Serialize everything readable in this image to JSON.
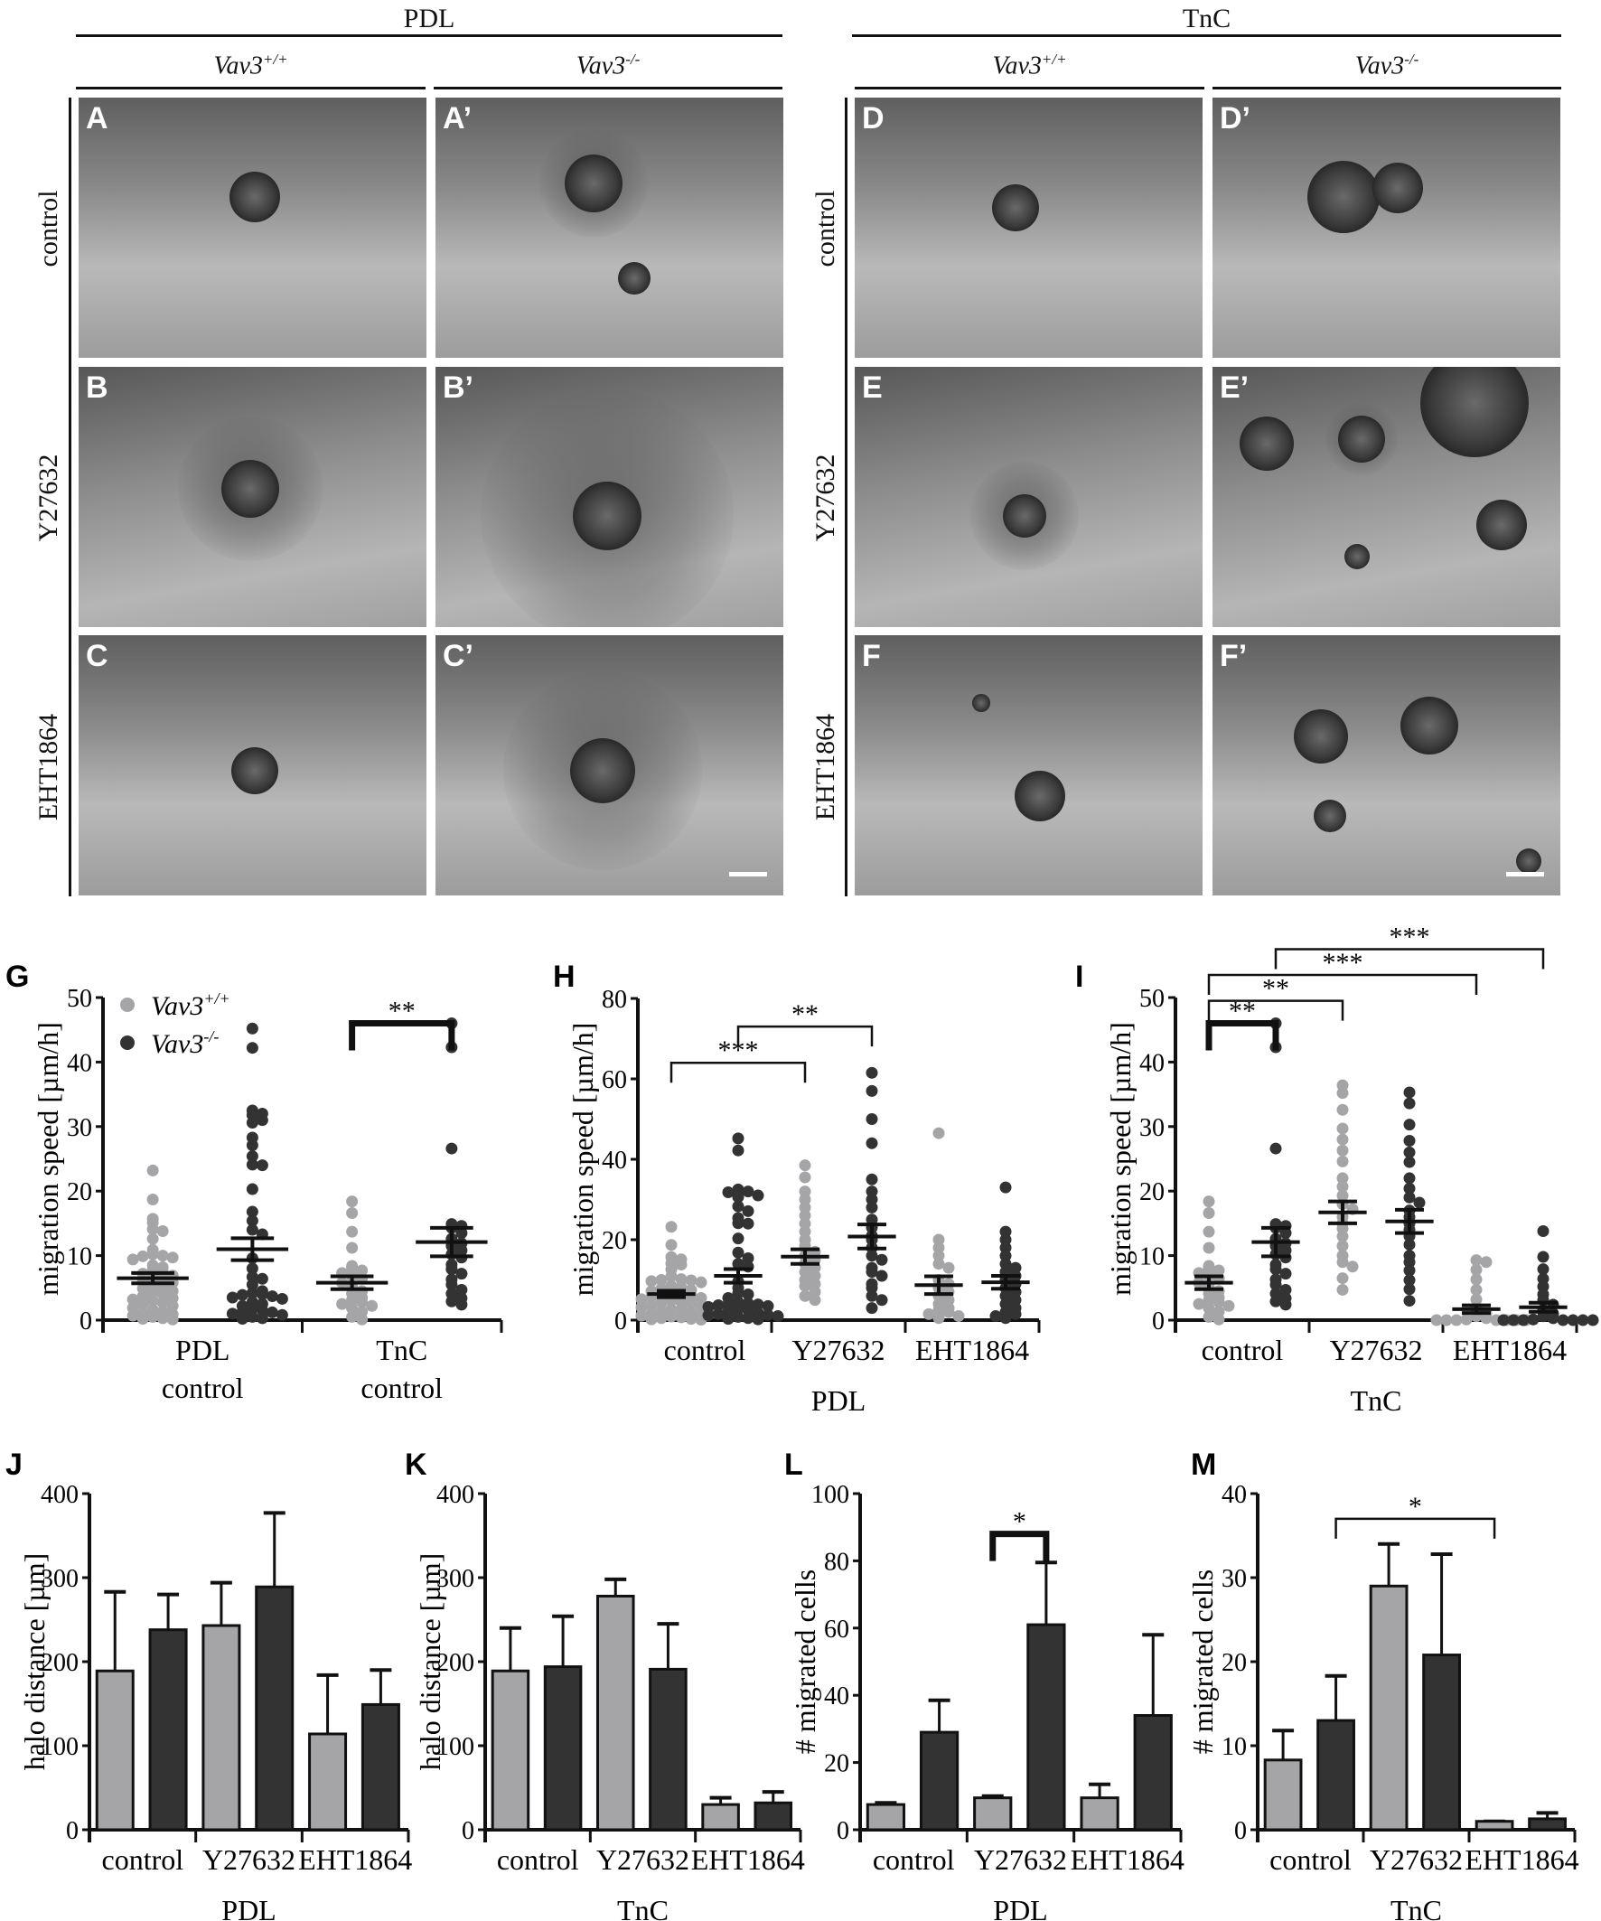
{
  "header": {
    "pdl": "PDL",
    "tnc": "TnC",
    "genotype_wt": "Vav3",
    "genotype_wt_sup": "+/+",
    "genotype_ko": "Vav3",
    "genotype_ko_sup": "-/-"
  },
  "rows": [
    "control",
    "Y27632",
    "EHT1864"
  ],
  "panels": [
    [
      "A",
      "A’",
      "D",
      "D’"
    ],
    [
      "B",
      "B’",
      "E",
      "E’"
    ],
    [
      "C",
      "C’",
      "F",
      "F’"
    ]
  ],
  "colors": {
    "wt": "#a5a5a8",
    "ko": "#333333"
  },
  "legend": {
    "wt": "Vav3",
    "wt_sup": "+/+",
    "ko": "Vav3",
    "ko_sup": "-/-"
  },
  "chart_data": [
    {
      "panel": "G",
      "type": "scatter",
      "ylabel": "migration speed [µm/h]",
      "ylim": [
        0,
        50
      ],
      "yticks": [
        0,
        10,
        20,
        30,
        40,
        50
      ],
      "categories": [
        [
          "PDL",
          "control"
        ],
        [
          "TnC",
          "control"
        ]
      ],
      "xlabel": "",
      "groups": [
        {
          "genotype": "wt",
          "values": [
            23.2,
            18.7,
            15.7,
            15.1,
            14.1,
            13.8,
            12.6,
            10.9,
            10.2,
            10,
            9.9,
            9.7,
            9.4,
            8.5,
            8.2,
            7.8,
            7.5,
            7.2,
            6.9,
            6.6,
            6.3,
            6,
            5.8,
            5.5,
            5.2,
            4.9,
            4.5,
            4.3,
            4,
            3.7,
            3.4,
            3.2,
            3,
            2.7,
            2.5,
            2.2,
            1.9,
            1.6,
            1.3,
            1.1,
            0.9,
            0.7,
            0.5,
            0.3,
            0.2,
            0.1
          ],
          "mean": 6.5,
          "sem": 0.8
        },
        {
          "genotype": "ko",
          "values": [
            45.2,
            42.2,
            32.5,
            32,
            31.8,
            31,
            30.6,
            28.3,
            27.1,
            25.4,
            24.1,
            24,
            20.3,
            16.8,
            15.4,
            14,
            13.3,
            9.6,
            8,
            6.7,
            6.4,
            5.5,
            4.5,
            4.2,
            4,
            3.9,
            3.7,
            3.5,
            3.3,
            2.8,
            2.5,
            2.2,
            1.8,
            1.5,
            1.3,
            1.2,
            1,
            0.8,
            0.5,
            0.3,
            0.2
          ],
          "mean": 11,
          "sem": 1.7
        },
        {
          "genotype": "wt",
          "values": [
            18.4,
            16.6,
            13.7,
            11.2,
            8.4,
            8.1,
            7.7,
            7.3,
            6.8,
            6.5,
            5.8,
            5.2,
            4.5,
            4.1,
            3.5,
            3.1,
            2.8,
            2.5,
            2.2,
            1.8,
            1.3,
            0.5,
            0.1
          ],
          "mean": 5.8,
          "sem": 1.0
        },
        {
          "genotype": "ko",
          "values": [
            46,
            42.3,
            26.6,
            14.9,
            14.6,
            14.3,
            13.5,
            12.6,
            11.9,
            11.5,
            10.8,
            10.2,
            9.7,
            8.6,
            7.9,
            7.2,
            6.3,
            5.5,
            4.7,
            4.1,
            3.4,
            2.9,
            2.4
          ],
          "mean": 12.1,
          "sem": 2.2
        }
      ],
      "significance": [
        {
          "from": 2,
          "to": 3,
          "label": "**",
          "y": 46,
          "bold": true
        }
      ],
      "legend": "top-left"
    },
    {
      "panel": "H",
      "type": "scatter",
      "ylabel": "migration speed [µm/h]",
      "ylim": [
        0,
        80
      ],
      "yticks": [
        0,
        20,
        40,
        60,
        80
      ],
      "categories": [
        [
          "control"
        ],
        [
          "Y27632"
        ],
        [
          "EHT1864"
        ]
      ],
      "xlabel": "PDL",
      "groups": [
        {
          "genotype": "wt",
          "values": [
            23.2,
            18.7,
            15.7,
            15.1,
            14.1,
            13.8,
            12.6,
            10.9,
            10.2,
            10,
            9.9,
            9.7,
            9.4,
            8.5,
            8.2,
            7.8,
            7.5,
            7.2,
            6.9,
            6.6,
            6.3,
            6,
            5.8,
            5.5,
            5.2,
            4.9,
            4.5,
            4.3,
            4,
            3.7,
            3.4,
            3.2,
            3,
            2.7,
            2.5,
            2.2,
            1.9,
            1.6,
            1.3,
            1.1,
            0.9,
            0.7,
            0.5,
            0.3,
            0.2,
            0.1
          ],
          "mean": 6.5,
          "sem": 0.8
        },
        {
          "genotype": "ko",
          "values": [
            45.2,
            42.2,
            32.5,
            32,
            31.8,
            31,
            30.6,
            28.3,
            27.1,
            25.4,
            24.1,
            24,
            20.3,
            16.8,
            15.4,
            14,
            13.3,
            9.6,
            8,
            6.7,
            6.4,
            5.5,
            4.5,
            4.2,
            4,
            3.9,
            3.7,
            3.5,
            3.3,
            2.8,
            2.5,
            2.2,
            1.8,
            1.5,
            1.3,
            1.2,
            1,
            0.8,
            0.5,
            0.3,
            0.2
          ],
          "mean": 11,
          "sem": 1.7
        },
        {
          "genotype": "wt",
          "values": [
            38.5,
            35.5,
            32,
            30,
            28,
            26,
            24,
            22,
            20,
            18.5,
            17,
            16,
            15,
            14,
            13,
            12,
            11,
            10,
            9,
            8.5,
            7,
            6,
            5
          ],
          "mean": 15.8,
          "sem": 1.8
        },
        {
          "genotype": "ko",
          "values": [
            61.5,
            57,
            50,
            44,
            35,
            32,
            30,
            28,
            25,
            23,
            21,
            20,
            18,
            16,
            15,
            13,
            12,
            11,
            9,
            8,
            6,
            5,
            3
          ],
          "mean": 20.8,
          "sem": 3.0
        },
        {
          "genotype": "wt",
          "values": [
            46.5,
            20,
            18,
            16,
            14,
            13,
            10,
            9,
            8,
            7,
            6,
            5,
            4,
            3,
            2.5,
            2,
            1.5,
            1,
            0.5
          ],
          "mean": 8.7,
          "sem": 2.2
        },
        {
          "genotype": "ko",
          "values": [
            33,
            22,
            20,
            18,
            16,
            14,
            13,
            12,
            11,
            10,
            9,
            8,
            7,
            6,
            5,
            4,
            3,
            2,
            1.5,
            1,
            0.5
          ],
          "mean": 9.4,
          "sem": 1.6
        }
      ],
      "significance": [
        {
          "from": 0,
          "to": 2,
          "label": "***",
          "y": 64
        },
        {
          "from": 1,
          "to": 3,
          "label": "**",
          "y": 73
        }
      ]
    },
    {
      "panel": "I",
      "type": "scatter",
      "ylabel": "migration speed [µm/h]",
      "ylim": [
        0,
        50
      ],
      "yticks": [
        0,
        10,
        20,
        30,
        40,
        50
      ],
      "categories": [
        [
          "control"
        ],
        [
          "Y27632"
        ],
        [
          "EHT1864"
        ]
      ],
      "xlabel": "TnC",
      "groups": [
        {
          "genotype": "wt",
          "values": [
            18.4,
            16.6,
            13.7,
            11.2,
            8.4,
            8.1,
            7.7,
            7.3,
            6.8,
            6.5,
            5.8,
            5.2,
            4.5,
            4.1,
            3.5,
            3.1,
            2.8,
            2.5,
            2.2,
            1.8,
            1.3,
            0.5,
            0.1
          ],
          "mean": 5.8,
          "sem": 1.0
        },
        {
          "genotype": "ko",
          "values": [
            46,
            42.3,
            26.6,
            14.9,
            14.6,
            14.3,
            13.5,
            12.6,
            11.9,
            11.5,
            10.8,
            10.2,
            9.7,
            8.6,
            7.9,
            7.2,
            6.3,
            5.5,
            4.7,
            4.1,
            3.4,
            2.9,
            2.4
          ],
          "mean": 12.1,
          "sem": 2.2
        },
        {
          "genotype": "wt",
          "values": [
            36.4,
            35.2,
            32.6,
            29.7,
            28,
            26.3,
            24.6,
            22,
            20.7,
            19.3,
            18,
            17.2,
            16,
            15,
            14.2,
            13,
            11.5,
            10,
            9,
            8.3,
            6.5,
            4.7
          ],
          "mean": 16.7,
          "sem": 1.7
        },
        {
          "genotype": "ko",
          "values": [
            35.3,
            33.6,
            30.3,
            27.8,
            26,
            24.5,
            22,
            20.4,
            19,
            18.2,
            17,
            16,
            15,
            14,
            13,
            11.7,
            10,
            9,
            7.7,
            6.2,
            4.8,
            3
          ],
          "mean": 15.3,
          "sem": 1.8
        },
        {
          "genotype": "wt",
          "values": [
            9.3,
            9,
            7.8,
            6.3,
            4.7,
            3.2,
            2,
            1.5,
            1,
            0.6,
            0.3,
            0.1,
            0,
            0,
            0,
            0,
            0,
            0,
            0
          ],
          "mean": 1.7,
          "sem": 0.6
        },
        {
          "genotype": "ko",
          "values": [
            13.8,
            9.8,
            7.9,
            6.4,
            5.2,
            4,
            3.1,
            2.4,
            1.6,
            1,
            0.6,
            0.3,
            0.1,
            0,
            0,
            0,
            0,
            0,
            0,
            0
          ],
          "mean": 2.0,
          "sem": 0.7
        }
      ],
      "significance": [
        {
          "from": 0,
          "to": 1,
          "label": "**",
          "y": 46,
          "bold": true
        },
        {
          "from": 0,
          "to": 2,
          "label": "**",
          "y": 49.5
        },
        {
          "from": 0,
          "to": 4,
          "label": "***",
          "y": 53.5
        },
        {
          "from": 1,
          "to": 5,
          "label": "***",
          "y": 57.5
        }
      ]
    },
    {
      "panel": "J",
      "type": "bar",
      "ylabel": "halo distance [µm]",
      "ylim": [
        0,
        400
      ],
      "yticks": [
        0,
        100,
        200,
        300,
        400
      ],
      "categories": [
        "control",
        "Y27632",
        "EHT1864"
      ],
      "xlabel": "PDL",
      "series": [
        {
          "genotype": "wt",
          "values": [
            189,
            243,
            114
          ],
          "error_upper": [
            283,
            294,
            184
          ]
        },
        {
          "genotype": "ko",
          "values": [
            238,
            289,
            149
          ],
          "error_upper": [
            280,
            377,
            190
          ]
        }
      ],
      "significance": []
    },
    {
      "panel": "K",
      "type": "bar",
      "ylabel": "halo distance [µm]",
      "ylim": [
        0,
        400
      ],
      "yticks": [
        0,
        100,
        200,
        300,
        400
      ],
      "categories": [
        "control",
        "Y27632",
        "EHT1864"
      ],
      "xlabel": "TnC",
      "series": [
        {
          "genotype": "wt",
          "values": [
            189,
            278,
            30
          ],
          "error_upper": [
            240,
            298,
            38
          ]
        },
        {
          "genotype": "ko",
          "values": [
            194,
            191,
            32
          ],
          "error_upper": [
            254,
            245,
            45
          ]
        }
      ],
      "significance": []
    },
    {
      "panel": "L",
      "type": "bar",
      "ylabel": "# migrated cells",
      "ylim": [
        0,
        100
      ],
      "yticks": [
        0,
        20,
        40,
        60,
        80,
        100
      ],
      "categories": [
        "control",
        "Y27632",
        "EHT1864"
      ],
      "xlabel": "PDL",
      "series": [
        {
          "genotype": "wt",
          "values": [
            7.5,
            9.5,
            9.5
          ],
          "error_upper": [
            8,
            10,
            13.5
          ]
        },
        {
          "genotype": "ko",
          "values": [
            29,
            61,
            34
          ],
          "error_upper": [
            38.5,
            79.5,
            58
          ]
        }
      ],
      "significance": [
        {
          "from": 2,
          "to": 3,
          "label": "*",
          "y": 88,
          "bold": true
        }
      ]
    },
    {
      "panel": "M",
      "type": "bar",
      "ylabel": "# migrated cells",
      "ylim": [
        0,
        40
      ],
      "yticks": [
        0,
        10,
        20,
        30,
        40
      ],
      "categories": [
        "control",
        "Y27632",
        "EHT1864"
      ],
      "xlabel": "TnC",
      "series": [
        {
          "genotype": "wt",
          "values": [
            8.3,
            29,
            1
          ],
          "error_upper": [
            11.8,
            34,
            1
          ]
        },
        {
          "genotype": "ko",
          "values": [
            13,
            20.8,
            1.3
          ],
          "error_upper": [
            18.3,
            32.8,
            2
          ]
        }
      ],
      "significance": [
        {
          "from": 1,
          "to": 4,
          "label": "*",
          "y": 37
        }
      ]
    }
  ]
}
